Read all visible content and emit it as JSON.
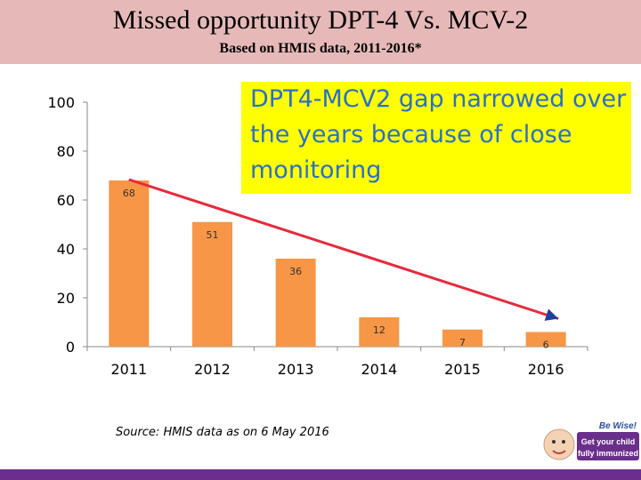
{
  "header": {
    "title": "Missed opportunity DPT-4 Vs. MCV-2",
    "subtitle": "Based on HMIS data, 2011-2016*",
    "bg_color": "#e6b9b8"
  },
  "callout": {
    "text": "DPT4-MCV2 gap narrowed over the years because of close monitoring",
    "bg_color": "#ffff00",
    "text_color": "#2b6fc9"
  },
  "source": "Source: HMIS data as on 6 May 2016",
  "badge": {
    "line1": "Be Wise!",
    "line2": "Get your child",
    "line3": "fully immunized"
  },
  "chart_data": {
    "type": "bar",
    "title": "",
    "xlabel": "",
    "ylabel": "",
    "categories": [
      "2011",
      "2012",
      "2013",
      "2014",
      "2015",
      "2016"
    ],
    "values": [
      68,
      51,
      36,
      12,
      7,
      6
    ],
    "ylim": [
      0,
      100
    ],
    "yticks": [
      0,
      20,
      40,
      60,
      80,
      100
    ],
    "bar_color": "#f79646",
    "trend_arrow": {
      "from": "2011",
      "to": "2016",
      "color": "#e8293b",
      "head_color": "#1f3fa0"
    },
    "grid": false
  }
}
